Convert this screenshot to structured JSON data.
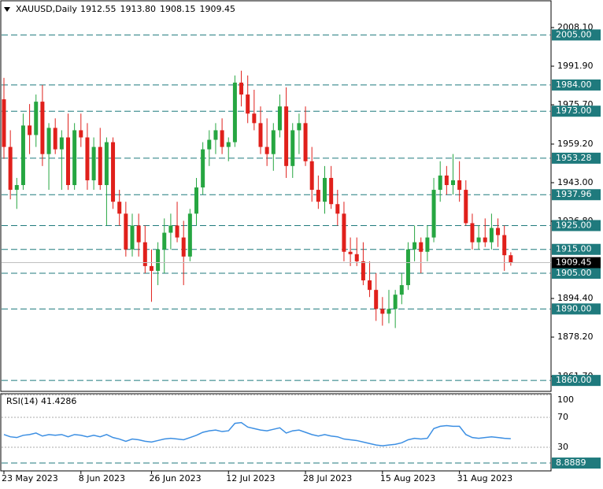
{
  "chart_data": [
    {
      "type": "candlestick",
      "title": "XAUUSD,Daily",
      "header_values": [
        "1912.55",
        "1913.80",
        "1908.15",
        "1909.45"
      ],
      "categories": [
        "23 May 2023",
        null,
        null,
        null,
        null,
        null,
        null,
        null,
        null,
        null,
        null,
        null,
        "8 Jun 2023",
        null,
        null,
        null,
        null,
        null,
        null,
        null,
        null,
        null,
        null,
        "26 Jun 2023",
        null,
        null,
        null,
        null,
        null,
        null,
        null,
        null,
        null,
        null,
        null,
        "12 Jul 2023",
        null,
        null,
        null,
        null,
        null,
        null,
        null,
        null,
        null,
        null,
        null,
        "28 Jul 2023",
        null,
        null,
        null,
        null,
        null,
        null,
        null,
        null,
        null,
        null,
        null,
        "15 Aug 2023",
        null,
        null,
        null,
        null,
        null,
        null,
        null,
        null,
        null,
        null,
        null,
        "31 Aug 2023",
        null,
        null,
        null,
        null,
        null,
        null,
        null,
        null
      ],
      "open": [
        1978,
        1958,
        1940,
        1942,
        1967,
        1963,
        1977,
        1955,
        1966,
        1957,
        1962,
        1942,
        1965,
        1962,
        1944,
        1958,
        1942,
        1960,
        1935,
        1930,
        1915,
        1925,
        1918,
        1908,
        1906,
        1915,
        1922,
        1925,
        1920,
        1912,
        1930,
        1941,
        1957,
        1961,
        1965,
        1958,
        1960,
        1985,
        1980,
        1972,
        1968,
        1958,
        1955,
        1965,
        1975,
        1950,
        1965,
        1968,
        1952,
        1940,
        1935,
        1945,
        1934,
        1930,
        1914,
        1913,
        1910,
        1902,
        1898,
        1890,
        1888,
        1890,
        1896,
        1900,
        1915,
        1918,
        1914,
        1920,
        1940,
        1946,
        1942,
        1944,
        1940,
        1926,
        1918,
        1920,
        1918,
        1924,
        1921,
        1912.55
      ],
      "high": [
        1987,
        1965,
        1945,
        1972,
        1976,
        1980,
        1984,
        1968,
        1970,
        1965,
        1972,
        1968,
        1972,
        1968,
        1962,
        1966,
        1962,
        1962,
        1940,
        1935,
        1930,
        1930,
        1925,
        1915,
        1918,
        1928,
        1930,
        1935,
        1927,
        1932,
        1945,
        1960,
        1965,
        1968,
        1970,
        1962,
        1988,
        1990,
        1988,
        1982,
        1975,
        1970,
        1968,
        1980,
        1983,
        1968,
        1972,
        1975,
        1958,
        1946,
        1950,
        1950,
        1940,
        1935,
        1920,
        1920,
        1918,
        1910,
        1905,
        1895,
        1898,
        1898,
        1905,
        1918,
        1925,
        1920,
        1925,
        1945,
        1952,
        1950,
        1955,
        1952,
        1944,
        1930,
        1925,
        1928,
        1930,
        1928,
        1925,
        1913.8
      ],
      "low": [
        1953,
        1936,
        1932,
        1940,
        1955,
        1958,
        1950,
        1940,
        1955,
        1940,
        1940,
        1940,
        1958,
        1940,
        1940,
        1940,
        1925,
        1932,
        1925,
        1912,
        1912,
        1912,
        1905,
        1893,
        1900,
        1905,
        1915,
        1918,
        1900,
        1910,
        1925,
        1938,
        1950,
        1955,
        1955,
        1952,
        1958,
        1975,
        1968,
        1965,
        1955,
        1950,
        1948,
        1962,
        1945,
        1945,
        1955,
        1950,
        1935,
        1932,
        1930,
        1932,
        1925,
        1910,
        1908,
        1908,
        1900,
        1895,
        1885,
        1883,
        1884,
        1882,
        1892,
        1898,
        1910,
        1905,
        1910,
        1918,
        1935,
        1938,
        1938,
        1935,
        1925,
        1915,
        1915,
        1916,
        1915,
        1916,
        1906,
        1908.15
      ],
      "close": [
        1958,
        1940,
        1942,
        1967,
        1963,
        1977,
        1955,
        1966,
        1957,
        1962,
        1942,
        1965,
        1962,
        1944,
        1958,
        1942,
        1960,
        1935,
        1930,
        1915,
        1925,
        1918,
        1908,
        1906,
        1915,
        1922,
        1925,
        1920,
        1912,
        1930,
        1941,
        1957,
        1961,
        1965,
        1958,
        1960,
        1985,
        1980,
        1972,
        1968,
        1958,
        1955,
        1965,
        1975,
        1950,
        1965,
        1968,
        1952,
        1940,
        1935,
        1945,
        1934,
        1930,
        1914,
        1913,
        1910,
        1902,
        1898,
        1890,
        1888,
        1890,
        1896,
        1900,
        1915,
        1918,
        1914,
        1920,
        1940,
        1946,
        1942,
        1944,
        1940,
        1926,
        1918,
        1920,
        1918,
        1924,
        1921,
        1912.55,
        1909.45
      ],
      "up_color": "#26a641",
      "down_color": "#e0201b",
      "ylim": [
        1855.75,
        2019.01
      ],
      "yticks": [
        {
          "value": 2008.1,
          "label": "2008.10"
        },
        {
          "value": 1991.9,
          "label": "1991.90"
        },
        {
          "value": 1975.7,
          "label": "1975.70"
        },
        {
          "value": 1959.2,
          "label": "1959.20"
        },
        {
          "value": 1943,
          "label": "1943.00"
        },
        {
          "value": 1926.8,
          "label": "1926.80"
        },
        {
          "value": 1894.4,
          "label": "1894.40"
        },
        {
          "value": 1878.2,
          "label": "1878.20"
        },
        {
          "value": 1861.7,
          "label": "1861.70"
        }
      ],
      "levels": [
        {
          "value": 2005,
          "label": "2005.00"
        },
        {
          "value": 1984,
          "label": "1984.00"
        },
        {
          "value": 1973,
          "label": "1973.00"
        },
        {
          "value": 1953.28,
          "label": "1953.28"
        },
        {
          "value": 1937.96,
          "label": "1937.96"
        },
        {
          "value": 1925,
          "label": "1925.00"
        },
        {
          "value": 1915,
          "label": "1915.00"
        },
        {
          "value": 1905,
          "label": "1905.00"
        },
        {
          "value": 1890,
          "label": "1890.00"
        },
        {
          "value": 1860,
          "label": "1860.00"
        }
      ],
      "level_color": "#1f7a7d"
    },
    {
      "type": "line",
      "title": "RSI(14) 41.4286",
      "series": [
        {
          "color": "#3c8fe3",
          "values": [
            47,
            44,
            43,
            46,
            47,
            49,
            45,
            47,
            46,
            47,
            44,
            47,
            46,
            44,
            46,
            44,
            47,
            43,
            41,
            38,
            41,
            40,
            38,
            37,
            39,
            41,
            42,
            41,
            40,
            43,
            46,
            50,
            52,
            53,
            51,
            52,
            62,
            63,
            57,
            55,
            53,
            52,
            54,
            56,
            49,
            52,
            53,
            50,
            47,
            45,
            47,
            45,
            44,
            41,
            40,
            39,
            37,
            35,
            33,
            32,
            33,
            34,
            36,
            40,
            42,
            41,
            42,
            55,
            58,
            59,
            58,
            58,
            47,
            43,
            42,
            43,
            44,
            43,
            42,
            41.4286
          ]
        }
      ],
      "ylim": [
        0,
        100
      ],
      "yticks": [
        100,
        70,
        30
      ],
      "levels": [
        {
          "value": 8.8889,
          "label": "8.8889"
        }
      ],
      "level_color": "#1f7a7d"
    }
  ]
}
